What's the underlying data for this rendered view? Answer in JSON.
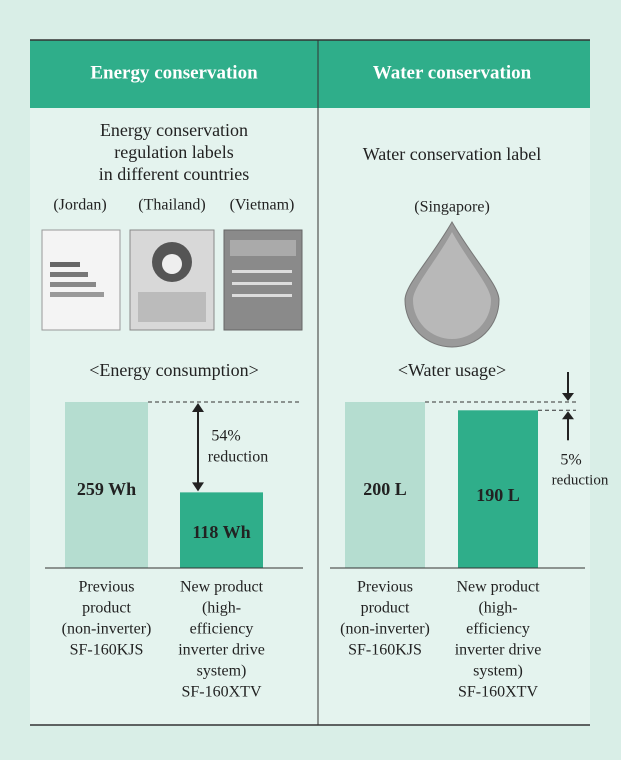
{
  "panels": [
    {
      "header": "Energy conservation",
      "subtitle": [
        "Energy conservation",
        "regulation labels",
        "in different countries"
      ],
      "countries": [
        "(Jordan)",
        "(Thailand)",
        "(Vietnam)"
      ],
      "chart": {
        "title": "<Energy consumption>",
        "categories": [
          [
            "Previous",
            "product",
            "(non-inverter)",
            "SF-160KJS"
          ],
          [
            "New product",
            "(high-",
            "efficiency",
            "inverter drive",
            "system)",
            "SF-160XTV"
          ]
        ],
        "values": [
          259,
          118
        ],
        "value_labels": [
          "259 Wh",
          "118 Wh"
        ],
        "colors": [
          "#b5ddd0",
          "#2fae8a"
        ],
        "annotation": [
          "54%",
          "reduction"
        ]
      }
    },
    {
      "header": "Water conservation",
      "subtitle": [
        "Water conservation label"
      ],
      "countries": [
        "(Singapore)"
      ],
      "chart": {
        "title": "<Water usage>",
        "categories": [
          [
            "Previous",
            "product",
            "(non-inverter)",
            "SF-160KJS"
          ],
          [
            "New product",
            "(high-",
            "efficiency",
            "inverter drive",
            "system)",
            "SF-160XTV"
          ]
        ],
        "values": [
          200,
          190
        ],
        "value_labels": [
          "200 L",
          "190 L"
        ],
        "colors": [
          "#b5ddd0",
          "#2fae8a"
        ],
        "annotation": [
          "5%",
          "reduction"
        ]
      }
    }
  ]
}
